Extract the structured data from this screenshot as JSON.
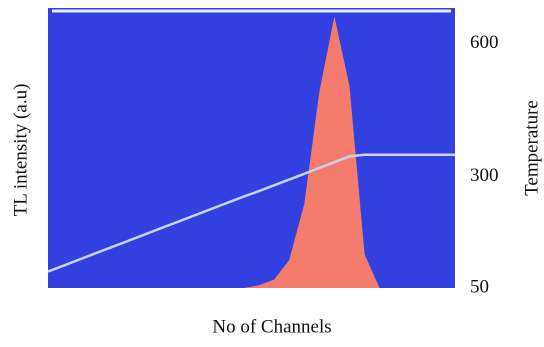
{
  "chart_data": {
    "type": "area",
    "y_label": "TL intensity (a.u)",
    "y2_label": "Temperature",
    "x_label": "No of Channels",
    "ylim": [
      0,
      100
    ],
    "y2lim": [
      50,
      680
    ],
    "y2ticks": [
      600,
      300,
      50
    ],
    "background": "#3140df",
    "series": [
      {
        "color": "#f47c6c",
        "values": [
          0,
          0,
          0,
          0,
          0,
          0,
          0,
          0,
          0,
          0,
          0,
          0,
          0,
          0,
          1,
          3,
          10,
          30,
          70,
          97,
          72,
          12,
          0,
          0,
          0,
          0,
          0,
          0
        ]
      },
      {
        "color": "#c9d1f0",
        "axis": "y2",
        "values": [
          87,
          100,
          113,
          126,
          139,
          152,
          165,
          178,
          191,
          204,
          217,
          230,
          243,
          256,
          268,
          281,
          294,
          307,
          320,
          333,
          346,
          350,
          350,
          350,
          350,
          350,
          350,
          350
        ]
      }
    ]
  }
}
